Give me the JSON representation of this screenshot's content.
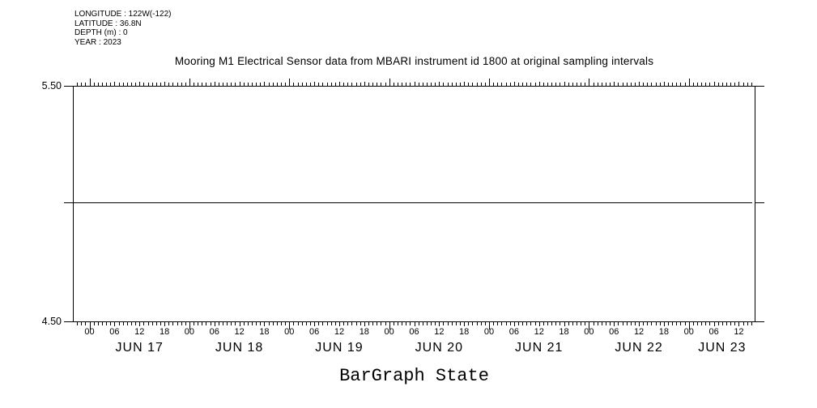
{
  "metadata": {
    "lines": [
      "LONGITUDE : 122W(-122)",
      "LATITUDE : 36.8N",
      "DEPTH (m) : 0",
      "YEAR : 2023"
    ]
  },
  "bottom_label": "BarGraph State",
  "y_axis": {
    "max_label": "5.50",
    "min_label": "4.50"
  },
  "colors": {
    "foreground": "#000000",
    "background": "#ffffff"
  },
  "chart_data": {
    "type": "line",
    "title": "Mooring M1 Electrical Sensor data from MBARI instrument id 1800 at original sampling intervals",
    "xlabel": "BarGraph State",
    "ylabel": "",
    "ylim": [
      4.5,
      5.5
    ],
    "y_ticks": [
      4.5,
      5.0,
      5.5
    ],
    "y_tick_labels_shown": [
      "4.50",
      "5.50"
    ],
    "grid": false,
    "legend": "none",
    "x_axis": {
      "year": "2023",
      "start": "JUN 16 20:00",
      "end": "JUN 23 16:00",
      "total_hours": 164,
      "start_hour_of_day": 20,
      "first_midnight_hour": 4,
      "minor_tick_hours": 1,
      "label_interval_hours": 6,
      "hour_label_values": [
        "00",
        "06",
        "12",
        "18"
      ],
      "day_labels": [
        "JUN 17",
        "JUN 18",
        "JUN 19",
        "JUN 20",
        "JUN 21",
        "JUN 22",
        "JUN 23"
      ]
    },
    "series": [
      {
        "name": "BarGraph State",
        "type": "constant-line",
        "value": 5.0,
        "x_start": "JUN 16 20:00",
        "x_end": "JUN 23 16:00"
      }
    ]
  }
}
